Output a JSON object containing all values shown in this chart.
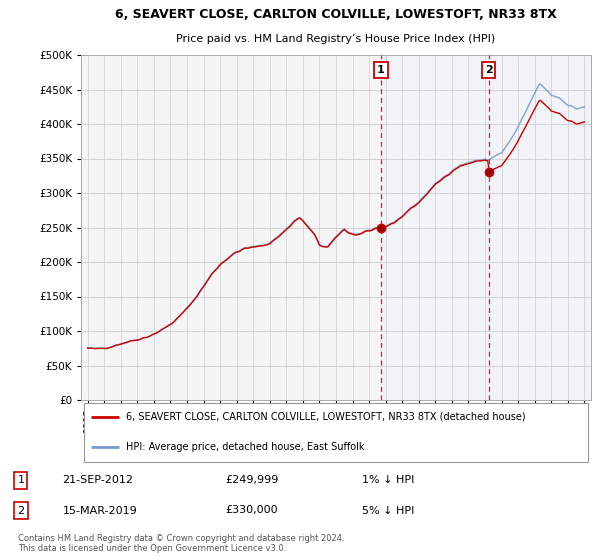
{
  "title_line1": "6, SEAVERT CLOSE, CARLTON COLVILLE, LOWESTOFT, NR33 8TX",
  "title_line2": "Price paid vs. HM Land Registry’s House Price Index (HPI)",
  "ytick_values": [
    0,
    50000,
    100000,
    150000,
    200000,
    250000,
    300000,
    350000,
    400000,
    450000,
    500000
  ],
  "ylim": [
    0,
    500000
  ],
  "xlim_start": 1994.6,
  "xlim_end": 2025.4,
  "hpi_color": "#7799cc",
  "price_color": "#cc0000",
  "purchase1_x": 2012.72,
  "purchase1_y": 249999,
  "purchase2_x": 2019.21,
  "purchase2_y": 330000,
  "vline_color": "#cc0000",
  "legend_label1": "6, SEAVERT CLOSE, CARLTON COLVILLE, LOWESTOFT, NR33 8TX (detached house)",
  "legend_label2": "HPI: Average price, detached house, East Suffolk",
  "background_color": "#ffffff",
  "plot_bg_color": "#f5f5f5",
  "grid_color": "#cccccc",
  "shade_color": "#ddeeff",
  "footer": "Contains HM Land Registry data © Crown copyright and database right 2024.\nThis data is licensed under the Open Government Licence v3.0."
}
